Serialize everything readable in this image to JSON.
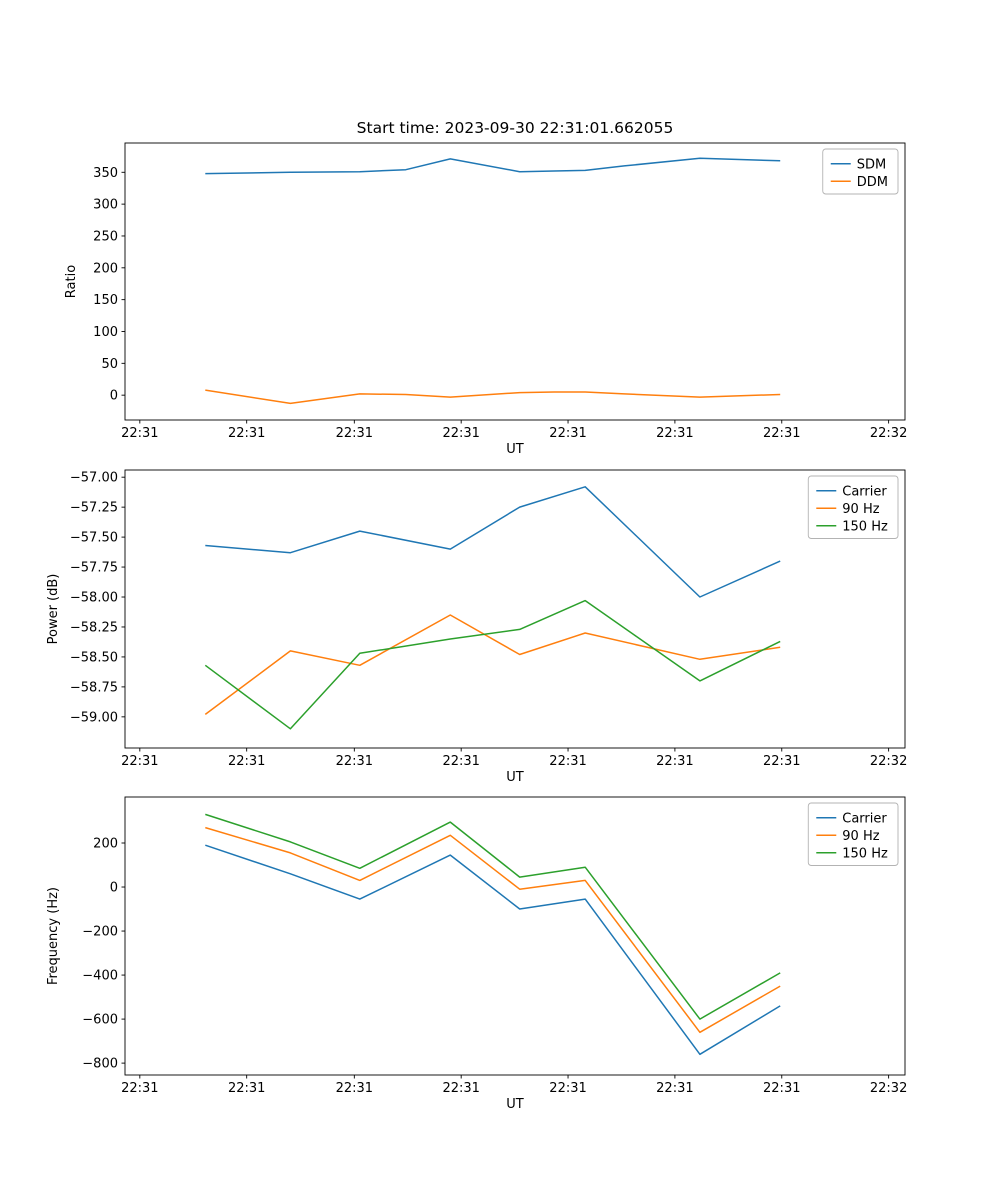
{
  "title": "Start time: 2023-09-30 22:31:01.662055",
  "colors": {
    "blue": "#1f77b4",
    "orange": "#ff7f0e",
    "green": "#2ca02c"
  },
  "chart_data": [
    {
      "type": "line",
      "xlabel": "UT",
      "ylabel": "Ratio",
      "xlim": [
        0,
        1
      ],
      "ylim": [
        -39,
        396
      ],
      "grid": false,
      "legend_position": "upper right",
      "xticks": {
        "pos": [
          0.019,
          0.156,
          0.294,
          0.431,
          0.568,
          0.705,
          0.842,
          0.979
        ],
        "labels": [
          "22:31",
          "22:31",
          "22:31",
          "22:31",
          "22:31",
          "22:31",
          "22:31",
          "22:32"
        ]
      },
      "yticks": {
        "values": [
          0,
          50,
          100,
          150,
          200,
          250,
          300,
          350
        ],
        "labels": [
          "0",
          "50",
          "100",
          "150",
          "200",
          "250",
          "300",
          "350"
        ]
      },
      "series": [
        {
          "name": "SDM",
          "color": "#1f77b4",
          "x": [
            0.103,
            0.212,
            0.301,
            0.36,
            0.417,
            0.506,
            0.55,
            0.59,
            0.64,
            0.737,
            0.84
          ],
          "y": [
            348,
            350,
            351,
            354,
            371,
            351,
            352,
            353,
            360,
            372,
            368
          ]
        },
        {
          "name": "DDM",
          "color": "#ff7f0e",
          "x": [
            0.103,
            0.212,
            0.301,
            0.36,
            0.417,
            0.506,
            0.55,
            0.59,
            0.64,
            0.737,
            0.84
          ],
          "y": [
            8,
            -13,
            2,
            1,
            -3,
            4,
            5,
            5,
            2,
            -3,
            1
          ]
        }
      ]
    },
    {
      "type": "line",
      "xlabel": "UT",
      "ylabel": "Power (dB)",
      "xlim": [
        0,
        1
      ],
      "ylim": [
        -59.26,
        -56.94
      ],
      "grid": false,
      "legend_position": "upper right",
      "xticks": {
        "pos": [
          0.019,
          0.156,
          0.294,
          0.431,
          0.568,
          0.705,
          0.842,
          0.979
        ],
        "labels": [
          "22:31",
          "22:31",
          "22:31",
          "22:31",
          "22:31",
          "22:31",
          "22:31",
          "22:32"
        ]
      },
      "yticks": {
        "values": [
          -59.0,
          -58.75,
          -58.5,
          -58.25,
          -58.0,
          -57.75,
          -57.5,
          -57.25,
          -57.0
        ],
        "labels": [
          "−59.00",
          "−58.75",
          "−58.50",
          "−58.25",
          "−58.00",
          "−57.75",
          "−57.50",
          "−57.25",
          "−57.00"
        ]
      },
      "series": [
        {
          "name": "Carrier",
          "color": "#1f77b4",
          "x": [
            0.103,
            0.212,
            0.301,
            0.417,
            0.506,
            0.59,
            0.737,
            0.84
          ],
          "y": [
            -57.57,
            -57.63,
            -57.45,
            -57.6,
            -57.25,
            -57.08,
            -58.0,
            -57.7
          ]
        },
        {
          "name": "90 Hz",
          "color": "#ff7f0e",
          "x": [
            0.103,
            0.212,
            0.301,
            0.417,
            0.506,
            0.59,
            0.737,
            0.84
          ],
          "y": [
            -58.98,
            -58.45,
            -58.57,
            -58.15,
            -58.48,
            -58.3,
            -58.52,
            -58.42
          ]
        },
        {
          "name": "150 Hz",
          "color": "#2ca02c",
          "x": [
            0.103,
            0.212,
            0.301,
            0.417,
            0.506,
            0.59,
            0.737,
            0.84
          ],
          "y": [
            -58.57,
            -59.1,
            -58.47,
            -58.35,
            -58.27,
            -58.03,
            -58.7,
            -58.37
          ]
        }
      ]
    },
    {
      "type": "line",
      "xlabel": "UT",
      "ylabel": "Frequency (Hz)",
      "xlim": [
        0,
        1
      ],
      "ylim": [
        -854,
        409
      ],
      "grid": false,
      "legend_position": "upper right",
      "xticks": {
        "pos": [
          0.019,
          0.156,
          0.294,
          0.431,
          0.568,
          0.705,
          0.842,
          0.979
        ],
        "labels": [
          "22:31",
          "22:31",
          "22:31",
          "22:31",
          "22:31",
          "22:31",
          "22:31",
          "22:32"
        ]
      },
      "yticks": {
        "values": [
          -800,
          -600,
          -400,
          -200,
          0,
          200
        ],
        "labels": [
          "−800",
          "−600",
          "−400",
          "−200",
          "0",
          "200"
        ]
      },
      "series": [
        {
          "name": "Carrier",
          "color": "#1f77b4",
          "x": [
            0.103,
            0.212,
            0.301,
            0.417,
            0.506,
            0.59,
            0.737,
            0.84
          ],
          "y": [
            190,
            60,
            -55,
            145,
            -100,
            -55,
            -760,
            -540
          ]
        },
        {
          "name": "90 Hz",
          "color": "#ff7f0e",
          "x": [
            0.103,
            0.212,
            0.301,
            0.417,
            0.506,
            0.59,
            0.737,
            0.84
          ],
          "y": [
            270,
            155,
            30,
            235,
            -10,
            30,
            -660,
            -450
          ]
        },
        {
          "name": "150 Hz",
          "color": "#2ca02c",
          "x": [
            0.103,
            0.212,
            0.301,
            0.417,
            0.506,
            0.59,
            0.737,
            0.84
          ],
          "y": [
            330,
            205,
            85,
            295,
            45,
            90,
            -600,
            -390
          ]
        }
      ]
    }
  ]
}
